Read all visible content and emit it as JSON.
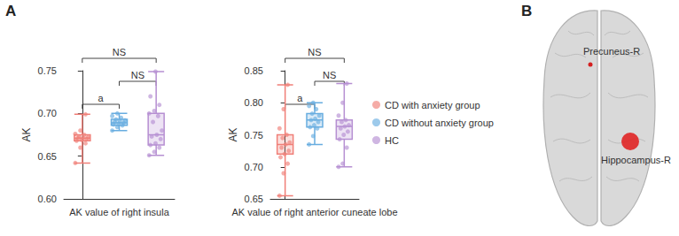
{
  "figure": {
    "panel_labels": [
      "A",
      "B"
    ],
    "brain": {
      "type": "brain_render",
      "regions": [
        {
          "label": "Precuneus-R"
        },
        {
          "label": "Hippocampus-R"
        }
      ]
    }
  },
  "chart_data": [
    {
      "type": "boxplot",
      "y_label": "AK",
      "x_label": "AK value of right insula",
      "ylim": [
        0.6,
        0.75
      ],
      "yticks": [
        {
          "value": 0.6,
          "label": "0.60"
        },
        {
          "value": 0.65,
          "label": "0.65"
        },
        {
          "value": 0.7,
          "label": "0.70"
        },
        {
          "value": 0.75,
          "label": "0.75"
        }
      ],
      "grid": false,
      "tick_labels": "y",
      "series": [
        {
          "name": "CD with anxiety group",
          "color": "#f07f78",
          "box": [
            0.642,
            0.668,
            0.671,
            0.675,
            0.699
          ],
          "points": [
            0.642,
            0.66,
            0.665,
            0.668,
            0.669,
            0.67,
            0.671,
            0.671,
            0.672,
            0.673,
            0.675,
            0.676,
            0.68,
            0.699
          ]
        },
        {
          "name": "CD without anxiety group",
          "color": "#68ade0",
          "box": [
            0.68,
            0.686,
            0.689,
            0.693,
            0.7
          ],
          "points": [
            0.68,
            0.684,
            0.686,
            0.687,
            0.688,
            0.689,
            0.69,
            0.691,
            0.692,
            0.693,
            0.695,
            0.697,
            0.7
          ]
        },
        {
          "name": "HC",
          "color": "#b68fd2",
          "box": [
            0.651,
            0.663,
            0.675,
            0.7,
            0.749
          ],
          "points": [
            0.651,
            0.655,
            0.66,
            0.663,
            0.665,
            0.67,
            0.673,
            0.675,
            0.68,
            0.69,
            0.697,
            0.7,
            0.703,
            0.71,
            0.72,
            0.749
          ]
        }
      ],
      "annotations": [
        {
          "groups": [
            0,
            1
          ],
          "text": "a"
        },
        {
          "groups": [
            1,
            2
          ],
          "text": "NS"
        },
        {
          "groups": [
            0,
            2
          ],
          "text": "NS"
        }
      ]
    },
    {
      "type": "boxplot",
      "y_label": "AK",
      "x_label": "AK value of right anterior cuneate lobe",
      "ylim": [
        0.65,
        0.85
      ],
      "yticks": [
        {
          "value": 0.65,
          "label": "0.65"
        },
        {
          "value": 0.7,
          "label": "0.70"
        },
        {
          "value": 0.75,
          "label": "0.75"
        },
        {
          "value": 0.8,
          "label": "0.80"
        },
        {
          "value": 0.85,
          "label": "0.85"
        }
      ],
      "grid": false,
      "tick_labels": "y",
      "legend": "right",
      "series": [
        {
          "name": "CD with anxiety group",
          "color": "#f07f78",
          "box": [
            0.655,
            0.72,
            0.735,
            0.75,
            0.828
          ],
          "points": [
            0.655,
            0.69,
            0.705,
            0.715,
            0.72,
            0.725,
            0.73,
            0.735,
            0.738,
            0.745,
            0.75,
            0.76,
            0.79,
            0.828
          ]
        },
        {
          "name": "CD without anxiety group",
          "color": "#68ade0",
          "box": [
            0.735,
            0.762,
            0.773,
            0.783,
            0.8
          ],
          "points": [
            0.735,
            0.748,
            0.76,
            0.762,
            0.765,
            0.77,
            0.773,
            0.775,
            0.78,
            0.783,
            0.79,
            0.795,
            0.8
          ]
        },
        {
          "name": "HC",
          "color": "#b68fd2",
          "box": [
            0.7,
            0.743,
            0.763,
            0.773,
            0.83
          ],
          "points": [
            0.7,
            0.705,
            0.73,
            0.743,
            0.75,
            0.755,
            0.76,
            0.763,
            0.765,
            0.77,
            0.773,
            0.78,
            0.8,
            0.83
          ]
        }
      ],
      "annotations": [
        {
          "groups": [
            0,
            1
          ],
          "text": "a"
        },
        {
          "groups": [
            1,
            2
          ],
          "text": "NS"
        },
        {
          "groups": [
            0,
            2
          ],
          "text": "NS"
        }
      ]
    }
  ]
}
